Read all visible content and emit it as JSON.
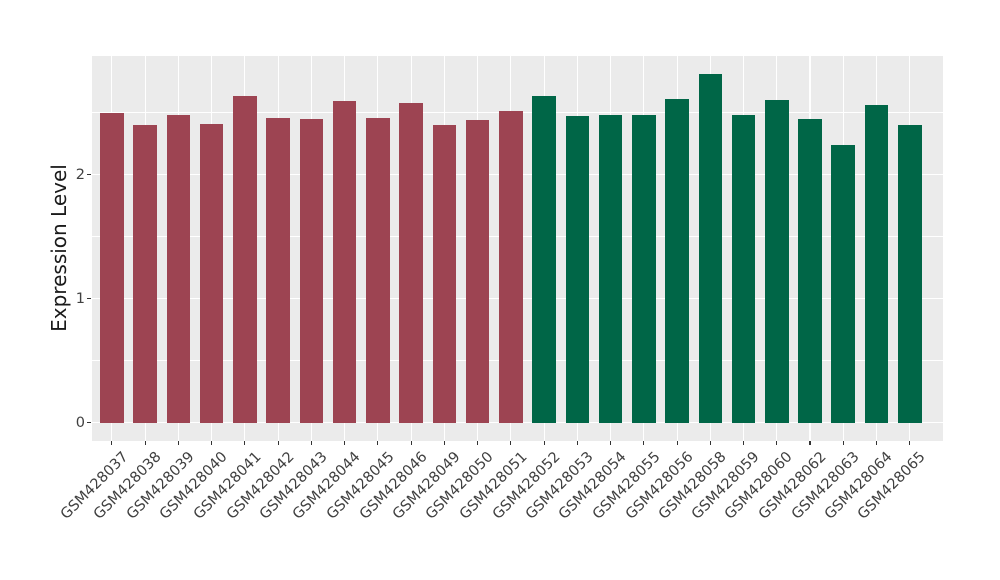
{
  "chart_data": {
    "type": "bar",
    "title": "",
    "xlabel": "",
    "ylabel": "Expression Level",
    "ylim": [
      0,
      2.96
    ],
    "y_major_ticks": [
      0,
      1,
      2
    ],
    "y_minor_gridlines": [
      0.5,
      1.5,
      2.5
    ],
    "grid": true,
    "legend_position": "none",
    "panel_background": "#EBEBEB",
    "gridline_color": "#FFFFFF",
    "axis_text_color": "#404040",
    "axis_title_color": "#1A1A1A",
    "groups": [
      {
        "name": "group-a",
        "color": "#9D4452"
      },
      {
        "name": "group-b",
        "color": "#006647"
      }
    ],
    "bars": [
      {
        "label": "GSM428037",
        "value": 2.5,
        "group": 0
      },
      {
        "label": "GSM428038",
        "value": 2.4,
        "group": 0
      },
      {
        "label": "GSM428039",
        "value": 2.48,
        "group": 0
      },
      {
        "label": "GSM428040",
        "value": 2.41,
        "group": 0
      },
      {
        "label": "GSM428041",
        "value": 2.63,
        "group": 0
      },
      {
        "label": "GSM428042",
        "value": 2.46,
        "group": 0
      },
      {
        "label": "GSM428043",
        "value": 2.45,
        "group": 0
      },
      {
        "label": "GSM428044",
        "value": 2.59,
        "group": 0
      },
      {
        "label": "GSM428045",
        "value": 2.46,
        "group": 0
      },
      {
        "label": "GSM428046",
        "value": 2.58,
        "group": 0
      },
      {
        "label": "GSM428049",
        "value": 2.4,
        "group": 0
      },
      {
        "label": "GSM428050",
        "value": 2.44,
        "group": 0
      },
      {
        "label": "GSM428051",
        "value": 2.51,
        "group": 0
      },
      {
        "label": "GSM428052",
        "value": 2.63,
        "group": 1
      },
      {
        "label": "GSM428053",
        "value": 2.47,
        "group": 1
      },
      {
        "label": "GSM428054",
        "value": 2.48,
        "group": 1
      },
      {
        "label": "GSM428055",
        "value": 2.48,
        "group": 1
      },
      {
        "label": "GSM428056",
        "value": 2.61,
        "group": 1
      },
      {
        "label": "GSM428058",
        "value": 2.81,
        "group": 1
      },
      {
        "label": "GSM428059",
        "value": 2.48,
        "group": 1
      },
      {
        "label": "GSM428060",
        "value": 2.6,
        "group": 1
      },
      {
        "label": "GSM428062",
        "value": 2.45,
        "group": 1
      },
      {
        "label": "GSM428063",
        "value": 2.24,
        "group": 1
      },
      {
        "label": "GSM428064",
        "value": 2.56,
        "group": 1
      },
      {
        "label": "GSM428065",
        "value": 2.4,
        "group": 1
      }
    ]
  }
}
